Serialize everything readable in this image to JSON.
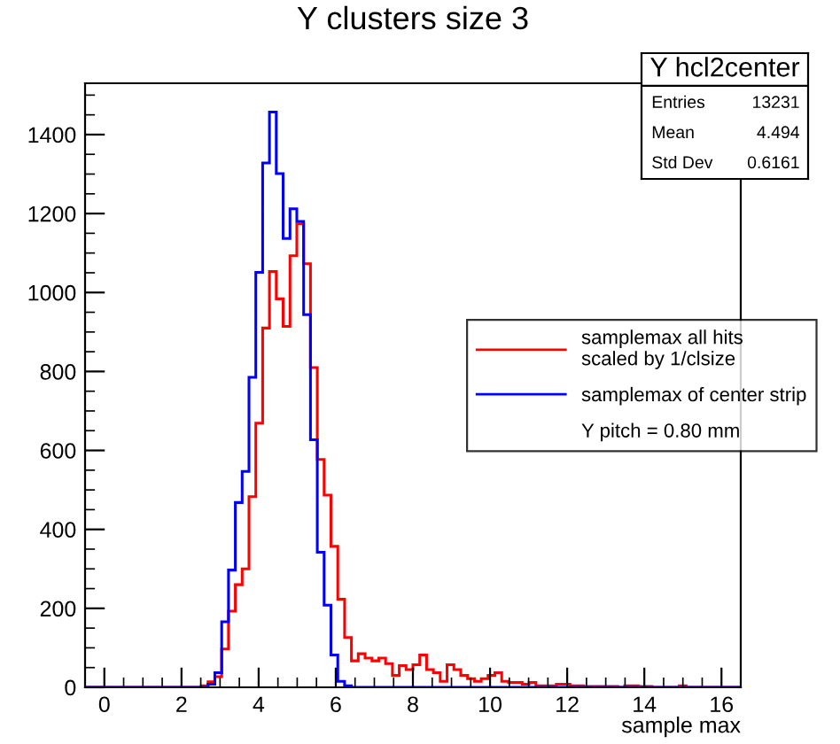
{
  "chart_data": {
    "type": "histogram",
    "title": "Y clusters size 3",
    "xlabel": "sample max",
    "bins": [
      -0.5,
      2.51,
      2.688,
      2.865,
      3.042,
      3.219,
      3.396,
      3.573,
      3.75,
      3.927,
      4.104,
      4.281,
      4.458,
      4.635,
      4.813,
      4.99,
      5.167,
      5.344,
      5.521,
      5.698,
      5.875,
      6.052,
      6.229,
      6.406,
      6.583,
      6.76,
      6.938,
      7.115,
      7.292,
      7.469,
      7.646,
      7.823,
      8.0,
      8.177,
      8.354,
      8.531,
      8.708,
      8.885,
      9.063,
      9.24,
      9.417,
      9.594,
      9.771,
      9.948,
      10.125,
      10.302,
      10.479,
      10.656,
      10.833,
      11.01,
      11.188,
      11.365,
      11.542,
      11.719,
      11.896,
      12.073,
      12.25,
      12.427,
      12.604,
      12.781,
      12.958,
      13.135,
      13.313,
      13.49,
      13.667,
      13.844,
      14.021,
      14.198,
      14.375,
      14.552,
      14.729,
      14.906,
      15.083,
      16.5
    ],
    "series": [
      {
        "name": "samplemax all hits\nscaled by 1/clsize",
        "color": "#ff0000",
        "values": [
          0,
          4,
          14,
          27,
          97,
          193,
          260,
          300,
          483,
          669,
          910,
          1053,
          984,
          914,
          1093,
          1174,
          1073,
          810,
          577,
          487,
          357,
          223,
          126,
          67,
          85,
          74,
          67,
          74,
          60,
          30,
          55,
          45,
          57,
          82,
          45,
          37,
          15,
          57,
          45,
          30,
          22,
          15,
          22,
          30,
          37,
          15,
          12,
          12,
          8,
          12,
          4,
          4,
          4,
          8,
          8,
          4,
          4,
          2,
          2,
          2,
          2,
          2,
          0,
          4,
          4,
          2,
          2,
          0,
          0,
          0,
          0,
          4,
          0
        ]
      },
      {
        "name": "samplemax of center strip",
        "color": "#0000ff",
        "values": [
          0,
          0,
          8,
          37,
          166,
          297,
          468,
          547,
          785,
          1051,
          1328,
          1457,
          1301,
          1137,
          1212,
          1180,
          944,
          627,
          342,
          208,
          82,
          15,
          4,
          0,
          0,
          0,
          0,
          0,
          0,
          0,
          0,
          0,
          0,
          0,
          0,
          0,
          0,
          0,
          0,
          0,
          0,
          0,
          0,
          0,
          0,
          0,
          0,
          0,
          0,
          0,
          0,
          0,
          0,
          0,
          0,
          0,
          0,
          0,
          0,
          0,
          0,
          0,
          0,
          0,
          0,
          0,
          0,
          0,
          0,
          0,
          0,
          0,
          0
        ]
      }
    ],
    "xlim": [
      -0.5,
      16.5
    ],
    "ylim": [
      0,
      1530
    ],
    "xticks": [
      0,
      2,
      4,
      6,
      8,
      10,
      12,
      14,
      16
    ],
    "yticks": [
      0,
      200,
      400,
      600,
      800,
      1000,
      1200,
      1400
    ],
    "grid": false,
    "legend": "right",
    "annotations": [
      "Y hcl2center",
      "Entries",
      "13231",
      "Mean",
      "4.494",
      "Std Dev",
      "0.6161",
      "Y pitch = 0.80 mm"
    ]
  }
}
